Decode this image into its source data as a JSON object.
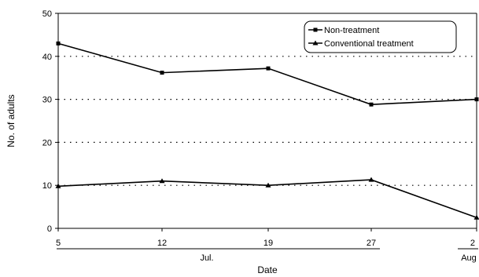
{
  "chart_data": {
    "type": "line",
    "title": "",
    "xlabel": "Date",
    "ylabel": "No. of adults",
    "ylim": [
      0,
      50
    ],
    "yticks": [
      0,
      10,
      20,
      30,
      40,
      50
    ],
    "grid": "dotted horizontal",
    "legend_position": "top-right",
    "categories": [
      "5",
      "12",
      "19",
      "27",
      "2"
    ],
    "x_groups": [
      {
        "label": "Jul.",
        "categories": [
          "5",
          "12",
          "19",
          "27"
        ]
      },
      {
        "label": "Aug",
        "categories": [
          "2"
        ]
      }
    ],
    "series": [
      {
        "name": "Non-treatment",
        "marker": "square",
        "values": [
          43,
          36.2,
          37.2,
          28.8,
          30
        ]
      },
      {
        "name": "Conventional treatment",
        "marker": "triangle",
        "values": [
          9.8,
          11,
          10,
          11.3,
          2.5
        ]
      }
    ]
  }
}
